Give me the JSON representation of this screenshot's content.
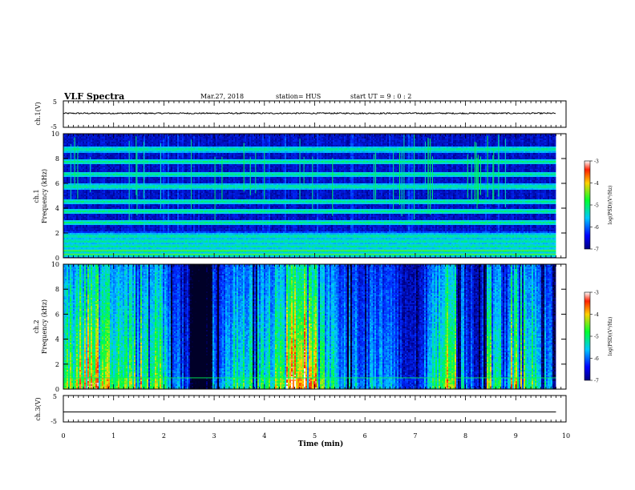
{
  "header": {
    "title": "VLF Spectra",
    "date": "Mar.27, 2018",
    "station": "station= HUS",
    "start_ut": "start UT =  9 : 0 : 2"
  },
  "chart_data": [
    {
      "type": "line",
      "name": "ch1-waveform",
      "ylabel": "ch.1(V)",
      "ylim": [
        -5,
        5
      ],
      "yticks": [
        "5",
        "-5"
      ],
      "x": [
        0,
        9.8
      ],
      "series": [
        {
          "values": [
            0.3,
            0.3
          ]
        }
      ]
    },
    {
      "type": "heatmap",
      "name": "ch1-spectrogram",
      "ylabel": "ch.1\nFrequency (kHz)",
      "ylim": [
        0,
        10
      ],
      "yticks": [
        "0",
        "2",
        "4",
        "6",
        "8",
        "10"
      ],
      "xlim": [
        0,
        10
      ],
      "data_end_min": 9.8,
      "horizontal_bands_khz": [
        0.3,
        0.6,
        1.0,
        1.4,
        1.8,
        2.9,
        3.8,
        4.6,
        5.8,
        6.8,
        7.8,
        8.8
      ],
      "colorbar": {
        "label": "log(PSD)(V²/Hz)",
        "range": [
          -7,
          -3
        ],
        "ticks": [
          "-3",
          "-4",
          "-5",
          "-6",
          "-7"
        ]
      }
    },
    {
      "type": "heatmap",
      "name": "ch2-spectrogram",
      "ylabel": "ch.2\nFrequency (kHz)",
      "ylim": [
        0,
        10
      ],
      "yticks": [
        "0",
        "2",
        "4",
        "6",
        "8",
        "10"
      ],
      "xlim": [
        0,
        10
      ],
      "data_end_min": 9.8,
      "colorbar": {
        "label": "log(PSD)(V²/Hz)",
        "range": [
          -7,
          -3
        ],
        "ticks": [
          "-3",
          "-4",
          "-5",
          "-6",
          "-7"
        ]
      }
    },
    {
      "type": "line",
      "name": "ch3-waveform",
      "ylabel": "ch.3(V)",
      "ylim": [
        -5,
        5
      ],
      "yticks": [
        "5",
        "-5"
      ],
      "x": [
        0,
        9.8
      ],
      "series": [
        {
          "values": [
            -1.2,
            -1.2
          ]
        }
      ]
    }
  ],
  "xaxis": {
    "label": "Time (min)",
    "xlim": [
      0,
      10
    ],
    "ticks": [
      "0",
      "1",
      "2",
      "3",
      "4",
      "5",
      "6",
      "7",
      "8",
      "9",
      "10"
    ]
  }
}
